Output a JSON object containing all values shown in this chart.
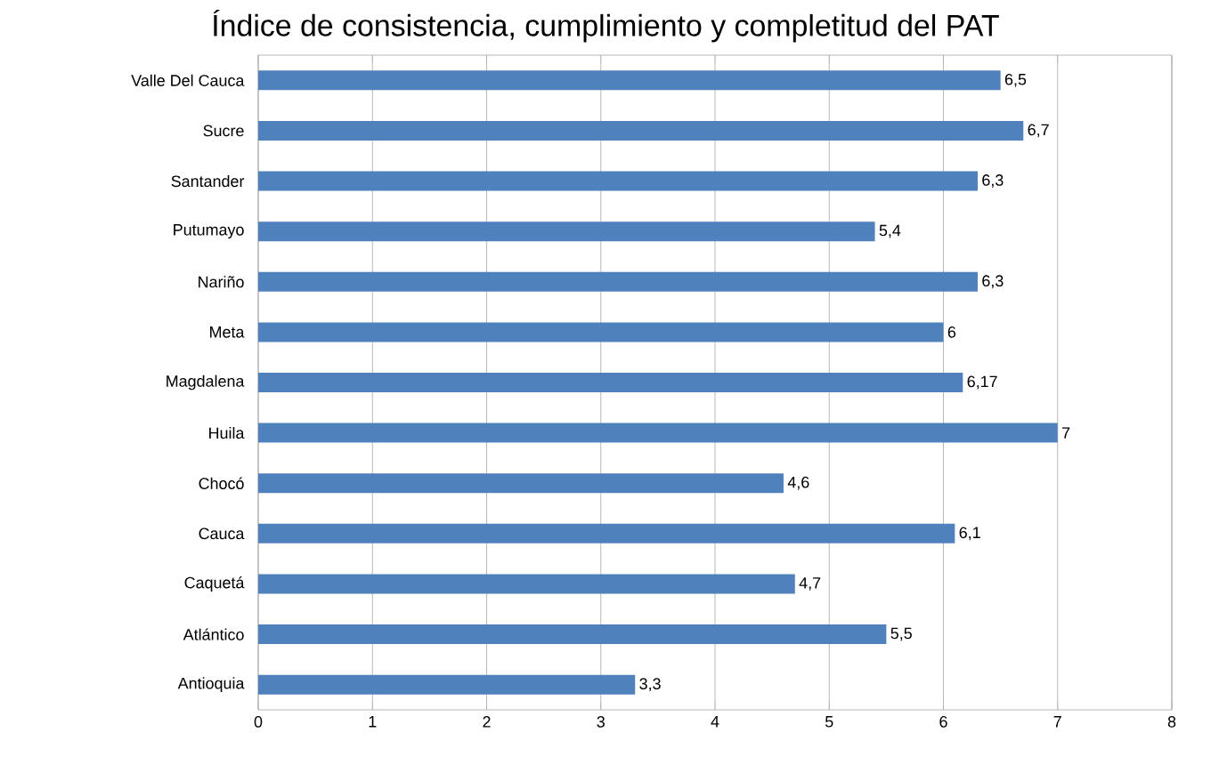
{
  "chart_data": {
    "type": "bar",
    "orientation": "horizontal",
    "title": "Índice de consistencia, cumplimiento y completitud del PAT",
    "categories": [
      "Valle Del Cauca",
      "Sucre",
      "Santander",
      "Putumayo",
      "Nariño",
      "Meta",
      "Magdalena",
      "Huila",
      "Chocó",
      "Cauca",
      "Caquetá",
      "Atlántico",
      "Antioquia"
    ],
    "values": [
      6.5,
      6.7,
      6.3,
      5.4,
      6.3,
      6,
      6.17,
      7,
      4.6,
      6.1,
      4.7,
      5.5,
      3.3
    ],
    "value_labels": [
      "6,5",
      "6,7",
      "6,3",
      "5,4",
      "6,3",
      "6",
      "6,17",
      "7",
      "4,6",
      "6,1",
      "4,7",
      "5,5",
      "3,3"
    ],
    "color": "#4f81bd",
    "xlim": [
      0,
      8
    ],
    "xticks": [
      0,
      1,
      2,
      3,
      4,
      5,
      6,
      7,
      8
    ],
    "grid": "x"
  }
}
